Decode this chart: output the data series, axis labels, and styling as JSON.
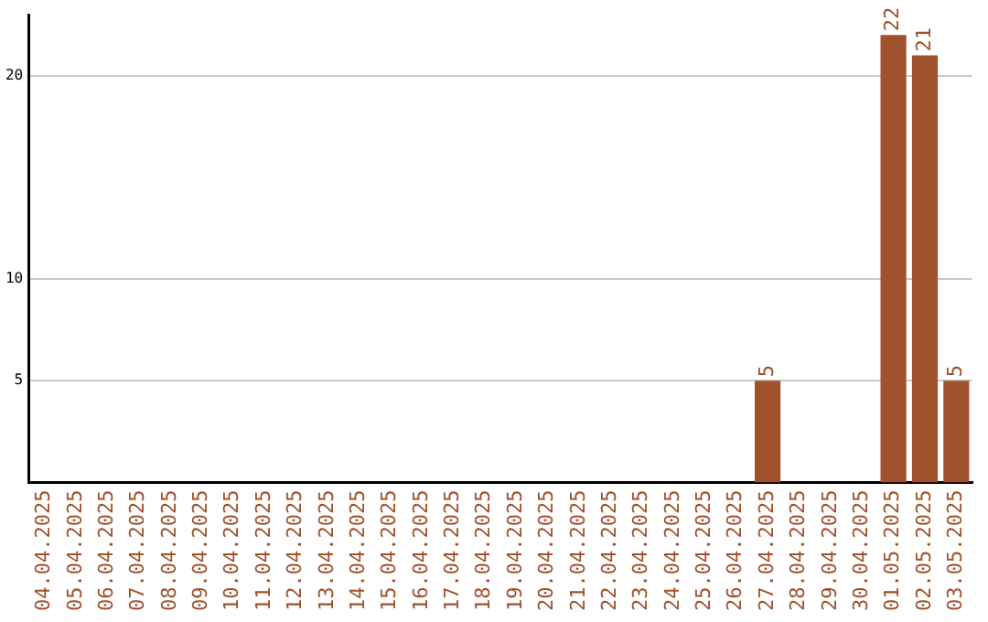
{
  "chart_data": {
    "type": "bar",
    "categories": [
      "04.04.2025",
      "05.04.2025",
      "06.04.2025",
      "07.04.2025",
      "08.04.2025",
      "09.04.2025",
      "10.04.2025",
      "11.04.2025",
      "12.04.2025",
      "13.04.2025",
      "14.04.2025",
      "15.04.2025",
      "16.04.2025",
      "17.04.2025",
      "18.04.2025",
      "19.04.2025",
      "20.04.2025",
      "21.04.2025",
      "22.04.2025",
      "23.04.2025",
      "24.04.2025",
      "25.04.2025",
      "26.04.2025",
      "27.04.2025",
      "28.04.2025",
      "29.04.2025",
      "30.04.2025",
      "01.05.2025",
      "02.05.2025",
      "03.05.2025"
    ],
    "values": [
      0,
      0,
      0,
      0,
      0,
      0,
      0,
      0,
      0,
      0,
      0,
      0,
      0,
      0,
      0,
      0,
      0,
      0,
      0,
      0,
      0,
      0,
      0,
      5,
      0,
      0,
      0,
      22,
      21,
      5
    ],
    "value_labels": [
      null,
      null,
      null,
      null,
      null,
      null,
      null,
      null,
      null,
      null,
      null,
      null,
      null,
      null,
      null,
      null,
      null,
      null,
      null,
      null,
      null,
      null,
      null,
      "5",
      null,
      null,
      null,
      "22",
      "21",
      "5"
    ],
    "color": "#a0522d",
    "ylim": [
      0,
      23
    ],
    "yticks": [
      5,
      10,
      20
    ],
    "grid": "y",
    "legend": false
  }
}
